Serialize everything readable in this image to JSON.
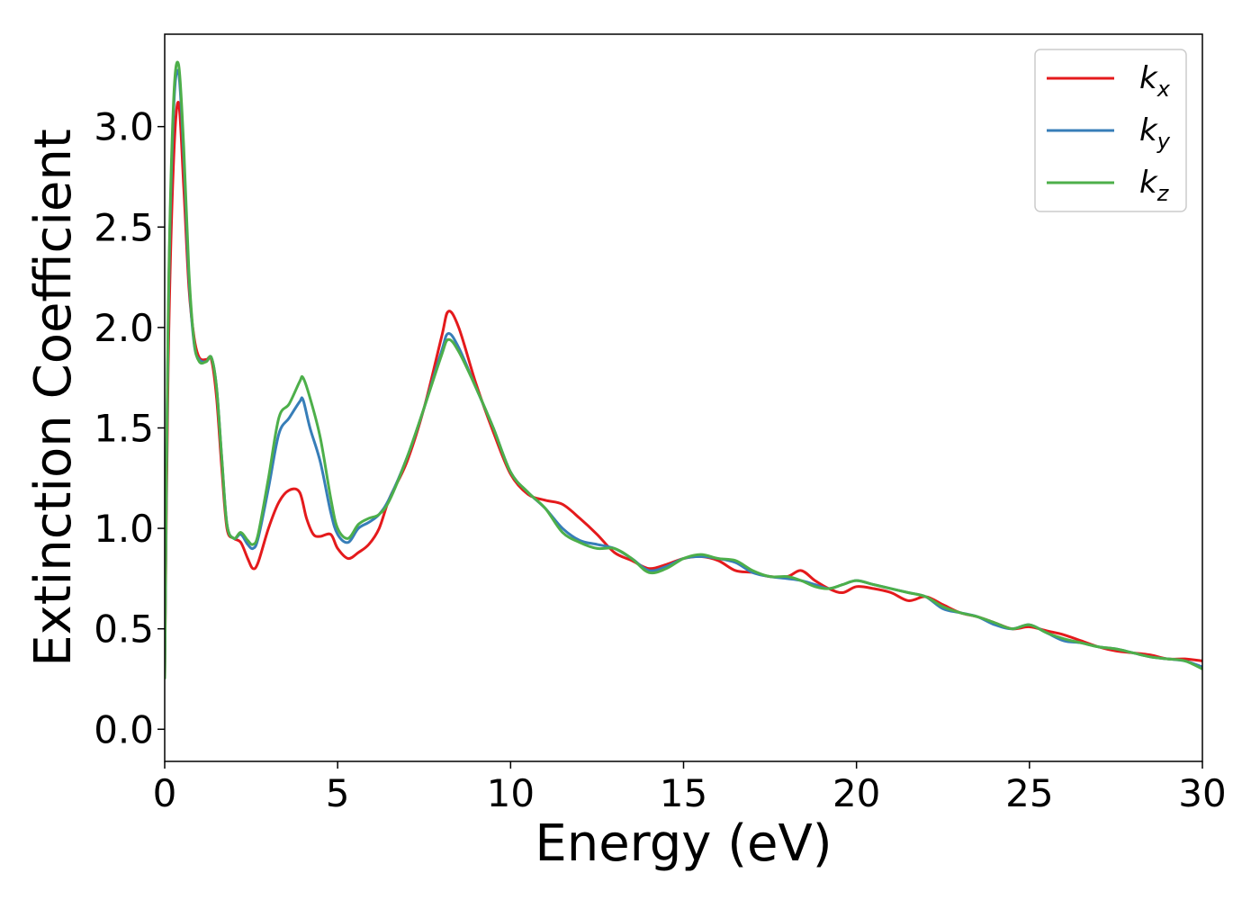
{
  "chart_data": {
    "type": "line",
    "title": "",
    "xlabel": "Energy (eV)",
    "ylabel": "Extinction Coefficient",
    "xlim": [
      0,
      30
    ],
    "ylim": [
      -0.16,
      3.46
    ],
    "xticks": [
      0,
      5,
      10,
      15,
      20,
      25,
      30
    ],
    "xtick_labels": [
      "0",
      "5",
      "10",
      "15",
      "20",
      "25",
      "30"
    ],
    "yticks": [
      0.0,
      0.5,
      1.0,
      1.5,
      2.0,
      2.5,
      3.0
    ],
    "ytick_labels": [
      "0.0",
      "0.5",
      "1.0",
      "1.5",
      "2.0",
      "2.5",
      "3.0"
    ],
    "grid": false,
    "legend_position": "top-right",
    "series": [
      {
        "name": "kx",
        "label_base": "k",
        "label_sub": "x",
        "color": "#e41a1c",
        "x": [
          0,
          0.1,
          0.25,
          0.4,
          0.55,
          0.7,
          0.85,
          1.0,
          1.2,
          1.35,
          1.5,
          1.65,
          1.8,
          2.0,
          2.2,
          2.4,
          2.55,
          2.7,
          3.0,
          3.3,
          3.6,
          3.9,
          4.1,
          4.3,
          4.5,
          4.8,
          5.0,
          5.3,
          5.6,
          5.9,
          6.2,
          6.5,
          7.0,
          7.5,
          8.0,
          8.2,
          8.5,
          9.0,
          9.5,
          10.0,
          10.5,
          11.0,
          11.5,
          12.0,
          12.5,
          13.0,
          13.5,
          14.0,
          14.5,
          15.0,
          15.5,
          16.0,
          16.5,
          17.0,
          17.5,
          18.0,
          18.4,
          18.8,
          19.2,
          19.6,
          20.0,
          20.5,
          21.0,
          21.5,
          22.0,
          22.5,
          23.0,
          23.5,
          24.0,
          24.5,
          25.0,
          25.5,
          26.0,
          26.5,
          27.0,
          27.5,
          28.0,
          28.5,
          29.0,
          29.5,
          30.0
        ],
        "y": [
          0.25,
          1.8,
          2.8,
          3.12,
          2.7,
          2.2,
          1.95,
          1.85,
          1.84,
          1.84,
          1.65,
          1.3,
          1.0,
          0.95,
          0.93,
          0.85,
          0.8,
          0.83,
          1.0,
          1.13,
          1.19,
          1.18,
          1.05,
          0.97,
          0.96,
          0.97,
          0.9,
          0.85,
          0.88,
          0.92,
          1.0,
          1.15,
          1.33,
          1.6,
          1.95,
          2.08,
          2.0,
          1.72,
          1.48,
          1.27,
          1.17,
          1.14,
          1.12,
          1.05,
          0.97,
          0.88,
          0.84,
          0.8,
          0.82,
          0.85,
          0.86,
          0.84,
          0.79,
          0.78,
          0.76,
          0.76,
          0.79,
          0.74,
          0.7,
          0.68,
          0.71,
          0.7,
          0.68,
          0.64,
          0.66,
          0.62,
          0.58,
          0.56,
          0.53,
          0.5,
          0.51,
          0.49,
          0.47,
          0.44,
          0.41,
          0.39,
          0.38,
          0.37,
          0.35,
          0.35,
          0.34
        ]
      },
      {
        "name": "ky",
        "label_base": "k",
        "label_sub": "y",
        "color": "#377eb8",
        "x": [
          0,
          0.1,
          0.25,
          0.4,
          0.55,
          0.7,
          0.85,
          1.0,
          1.2,
          1.35,
          1.5,
          1.65,
          1.8,
          2.0,
          2.2,
          2.4,
          2.55,
          2.7,
          3.0,
          3.3,
          3.6,
          3.9,
          4.0,
          4.2,
          4.5,
          4.8,
          5.0,
          5.3,
          5.6,
          5.9,
          6.2,
          6.5,
          7.0,
          7.5,
          8.0,
          8.2,
          8.5,
          9.0,
          9.5,
          10.0,
          10.5,
          11.0,
          11.5,
          12.0,
          12.5,
          13.0,
          13.5,
          14.0,
          14.5,
          15.0,
          15.5,
          16.0,
          16.5,
          17.0,
          17.5,
          18.0,
          18.4,
          18.8,
          19.2,
          19.6,
          20.0,
          20.5,
          21.0,
          21.5,
          22.0,
          22.5,
          23.0,
          23.5,
          24.0,
          24.5,
          25.0,
          25.5,
          26.0,
          26.5,
          27.0,
          27.5,
          28.0,
          28.5,
          29.0,
          29.5,
          30.0
        ],
        "y": [
          0.25,
          2.0,
          3.05,
          3.27,
          2.85,
          2.25,
          1.92,
          1.84,
          1.83,
          1.85,
          1.7,
          1.35,
          1.02,
          0.95,
          0.97,
          0.92,
          0.9,
          0.95,
          1.2,
          1.47,
          1.55,
          1.63,
          1.64,
          1.5,
          1.33,
          1.08,
          0.97,
          0.93,
          1.0,
          1.03,
          1.07,
          1.15,
          1.35,
          1.6,
          1.88,
          1.97,
          1.9,
          1.7,
          1.5,
          1.28,
          1.18,
          1.1,
          1.0,
          0.94,
          0.92,
          0.9,
          0.85,
          0.79,
          0.81,
          0.85,
          0.86,
          0.85,
          0.83,
          0.78,
          0.76,
          0.75,
          0.74,
          0.72,
          0.7,
          0.72,
          0.74,
          0.72,
          0.7,
          0.68,
          0.66,
          0.6,
          0.58,
          0.56,
          0.52,
          0.5,
          0.52,
          0.48,
          0.44,
          0.43,
          0.41,
          0.4,
          0.38,
          0.36,
          0.35,
          0.34,
          0.31
        ]
      },
      {
        "name": "kz",
        "label_base": "k",
        "label_sub": "z",
        "color": "#4daf4a",
        "x": [
          0,
          0.1,
          0.25,
          0.4,
          0.55,
          0.7,
          0.85,
          1.0,
          1.2,
          1.35,
          1.5,
          1.65,
          1.8,
          2.0,
          2.2,
          2.4,
          2.55,
          2.7,
          3.0,
          3.3,
          3.6,
          3.9,
          4.0,
          4.2,
          4.5,
          4.8,
          5.0,
          5.3,
          5.6,
          5.9,
          6.2,
          6.5,
          7.0,
          7.5,
          8.0,
          8.2,
          8.5,
          9.0,
          9.5,
          10.0,
          10.5,
          11.0,
          11.5,
          12.0,
          12.5,
          13.0,
          13.5,
          14.0,
          14.5,
          15.0,
          15.5,
          16.0,
          16.5,
          17.0,
          17.5,
          18.0,
          18.4,
          18.8,
          19.2,
          19.6,
          20.0,
          20.5,
          21.0,
          21.5,
          22.0,
          22.5,
          23.0,
          23.5,
          24.0,
          24.5,
          25.0,
          25.5,
          26.0,
          26.5,
          27.0,
          27.5,
          28.0,
          28.5,
          29.0,
          29.5,
          30.0
        ],
        "y": [
          0.25,
          2.05,
          3.1,
          3.31,
          2.9,
          2.28,
          1.93,
          1.83,
          1.83,
          1.85,
          1.7,
          1.35,
          1.02,
          0.95,
          0.98,
          0.94,
          0.92,
          0.97,
          1.25,
          1.55,
          1.62,
          1.73,
          1.75,
          1.65,
          1.45,
          1.15,
          1.0,
          0.95,
          1.02,
          1.05,
          1.07,
          1.14,
          1.35,
          1.6,
          1.86,
          1.94,
          1.88,
          1.7,
          1.5,
          1.28,
          1.18,
          1.1,
          0.98,
          0.93,
          0.9,
          0.9,
          0.85,
          0.78,
          0.8,
          0.85,
          0.87,
          0.85,
          0.84,
          0.79,
          0.76,
          0.76,
          0.74,
          0.71,
          0.7,
          0.72,
          0.74,
          0.72,
          0.7,
          0.68,
          0.66,
          0.61,
          0.58,
          0.56,
          0.53,
          0.5,
          0.52,
          0.48,
          0.45,
          0.43,
          0.41,
          0.4,
          0.38,
          0.36,
          0.35,
          0.34,
          0.3
        ]
      }
    ]
  }
}
